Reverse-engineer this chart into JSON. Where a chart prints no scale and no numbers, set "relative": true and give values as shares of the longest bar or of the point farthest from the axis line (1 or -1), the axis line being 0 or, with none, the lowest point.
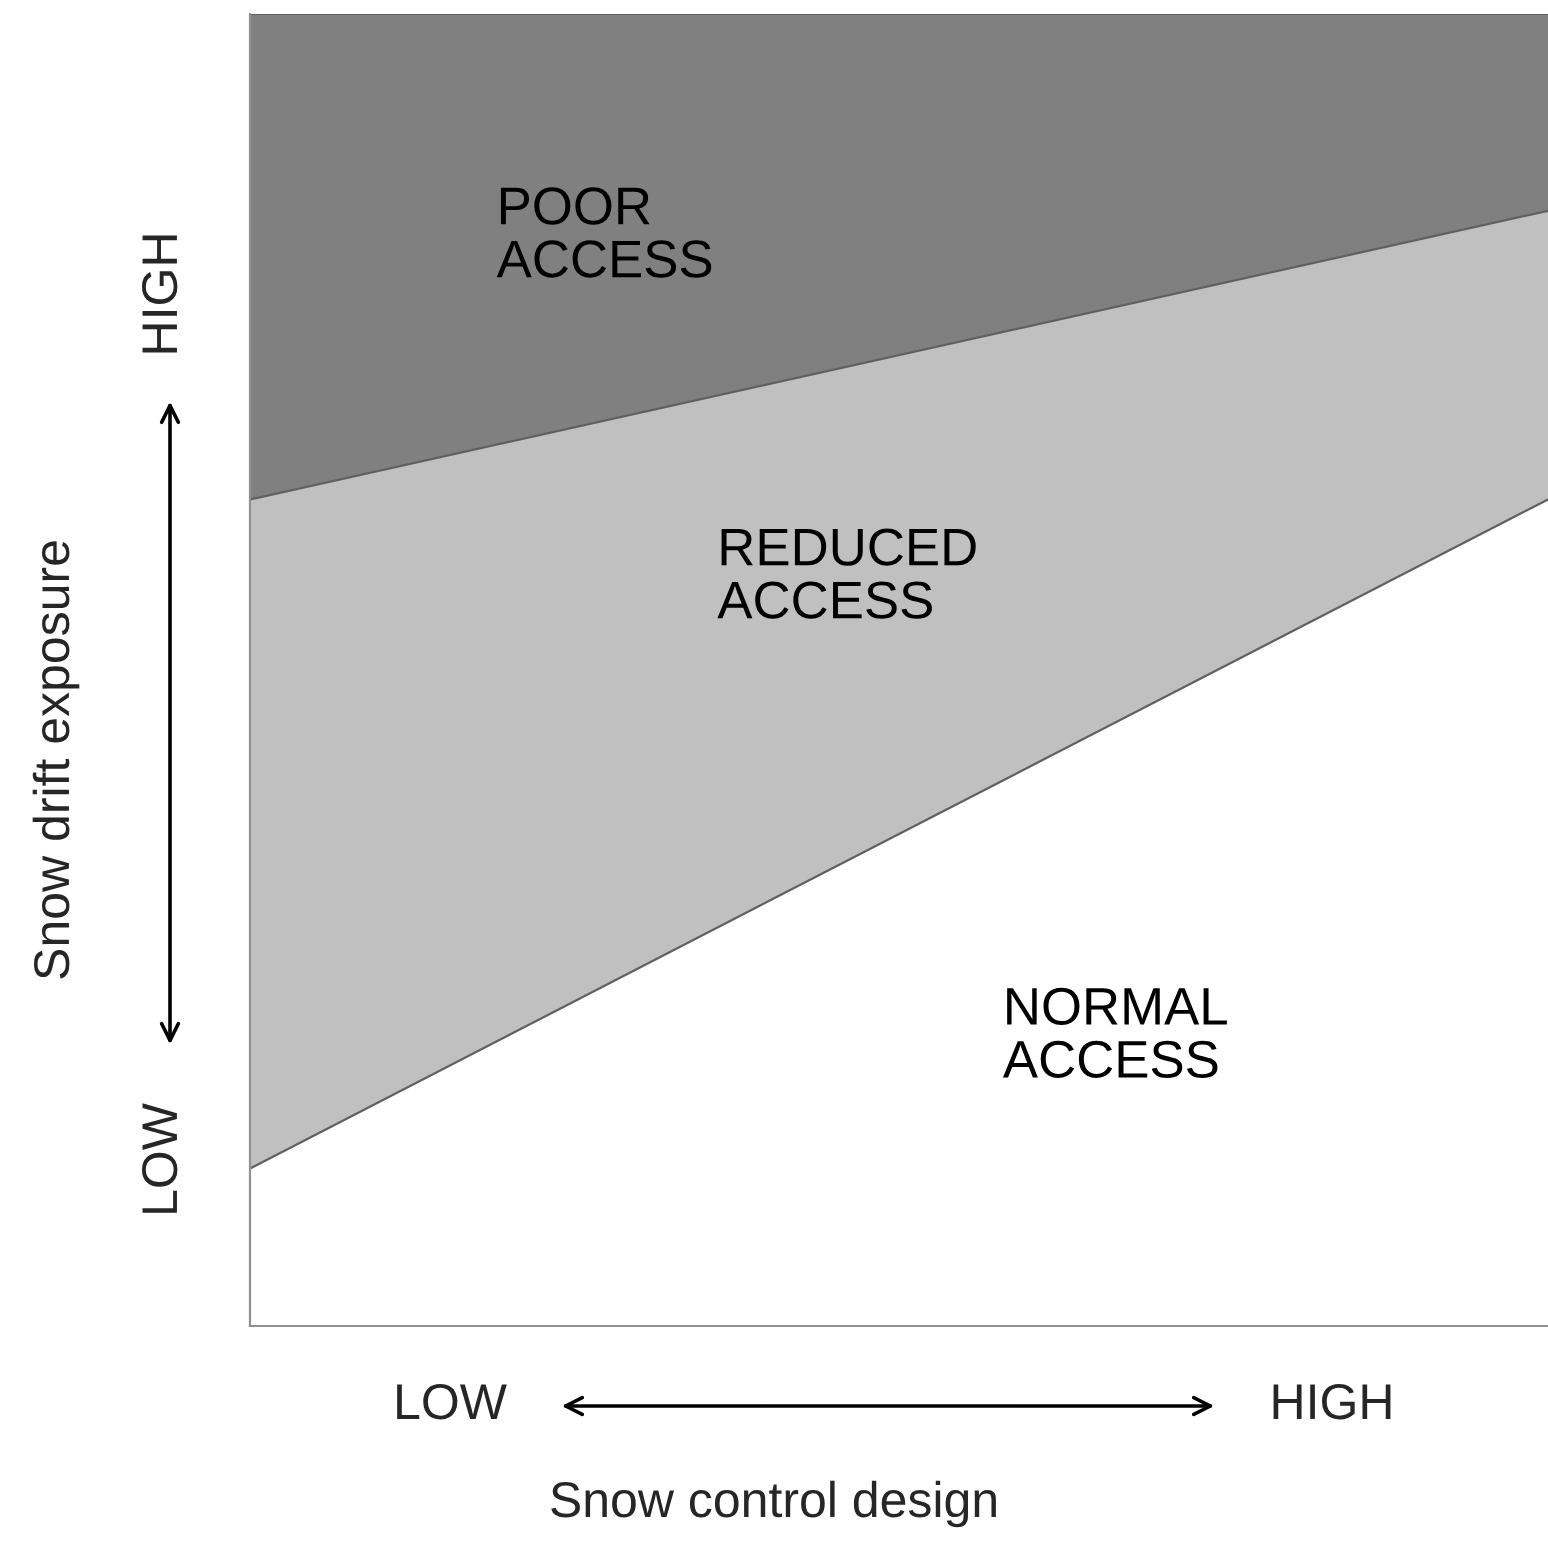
{
  "chart_data": {
    "type": "area",
    "stacked": true,
    "relative": true,
    "xlabel": "Snow control design",
    "ylabel": "Snow drift exposure",
    "categories": [
      null,
      null
    ],
    "series": [
      {
        "name": "NORMAL ACCESS",
        "color": "#ffffff",
        "values": [
          0.12,
          0.63
        ]
      },
      {
        "name": "REDUCED ACCESS",
        "color": "#c0c0c0",
        "values": [
          0.51,
          0.22
        ]
      },
      {
        "name": "POOR ACCESS",
        "color": "#808080",
        "values": [
          0.37,
          0.15
        ]
      }
    ],
    "annotations": [
      "LOW",
      "HIGH",
      "LOW",
      "HIGH"
    ],
    "legend": false
  }
}
